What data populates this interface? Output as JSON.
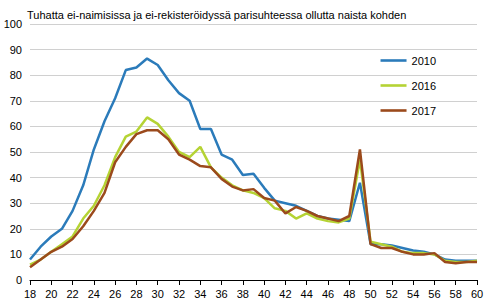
{
  "chart_data": {
    "type": "line",
    "title": "Tuhatta ei-naimisissa ja ei-rekisteröidyssä parisuhteessa ollutta naista kohden",
    "x": [
      18,
      19,
      20,
      21,
      22,
      23,
      24,
      25,
      26,
      27,
      28,
      29,
      30,
      31,
      32,
      33,
      34,
      35,
      36,
      37,
      38,
      39,
      40,
      41,
      42,
      43,
      44,
      45,
      46,
      47,
      48,
      49,
      50,
      51,
      52,
      53,
      54,
      55,
      56,
      57,
      58,
      59,
      60
    ],
    "series": [
      {
        "name": "2010",
        "color": "#2b7bba",
        "values": [
          8,
          13,
          17,
          20,
          27,
          37,
          51,
          62,
          71,
          82,
          83,
          86.5,
          84,
          78,
          73,
          70,
          59,
          59,
          49,
          47,
          41,
          41.5,
          36,
          31,
          30,
          29,
          27,
          25,
          24,
          23.5,
          23,
          38,
          14,
          14,
          13.5,
          12.5,
          11.5,
          11,
          10,
          8,
          7.5,
          7.5,
          7.5
        ]
      },
      {
        "name": "2016",
        "color": "#b5d334",
        "values": [
          6,
          8,
          11,
          14,
          17,
          24,
          29,
          37,
          48,
          56,
          58,
          63.5,
          61,
          56,
          50,
          48,
          52,
          44,
          40,
          37,
          35,
          34,
          32,
          28,
          27,
          24,
          26,
          24,
          23,
          22.5,
          24,
          47,
          15,
          14,
          13,
          11,
          10.5,
          10.5,
          10,
          7.5,
          7,
          7,
          7.5
        ]
      },
      {
        "name": "2017",
        "color": "#9b4a1c",
        "values": [
          5,
          8,
          11,
          13,
          16,
          21,
          27,
          34,
          46,
          52,
          57,
          58.5,
          58.5,
          55,
          49,
          47,
          44.5,
          44,
          39.5,
          36.5,
          35,
          35.5,
          32,
          31,
          26,
          28.5,
          27,
          25,
          24,
          23,
          25,
          51,
          14,
          12.5,
          12.5,
          11,
          10,
          10,
          10.5,
          7,
          6.5,
          7,
          7
        ]
      }
    ],
    "xlim": [
      18,
      60
    ],
    "xticks": [
      18,
      20,
      22,
      24,
      26,
      28,
      30,
      32,
      34,
      36,
      38,
      40,
      42,
      44,
      46,
      48,
      50,
      52,
      54,
      56,
      58,
      60
    ],
    "ylim": [
      0,
      100
    ],
    "yticks": [
      0,
      10,
      20,
      30,
      40,
      50,
      60,
      70,
      80,
      90,
      100
    ],
    "grid": true,
    "legend": "upper right"
  }
}
